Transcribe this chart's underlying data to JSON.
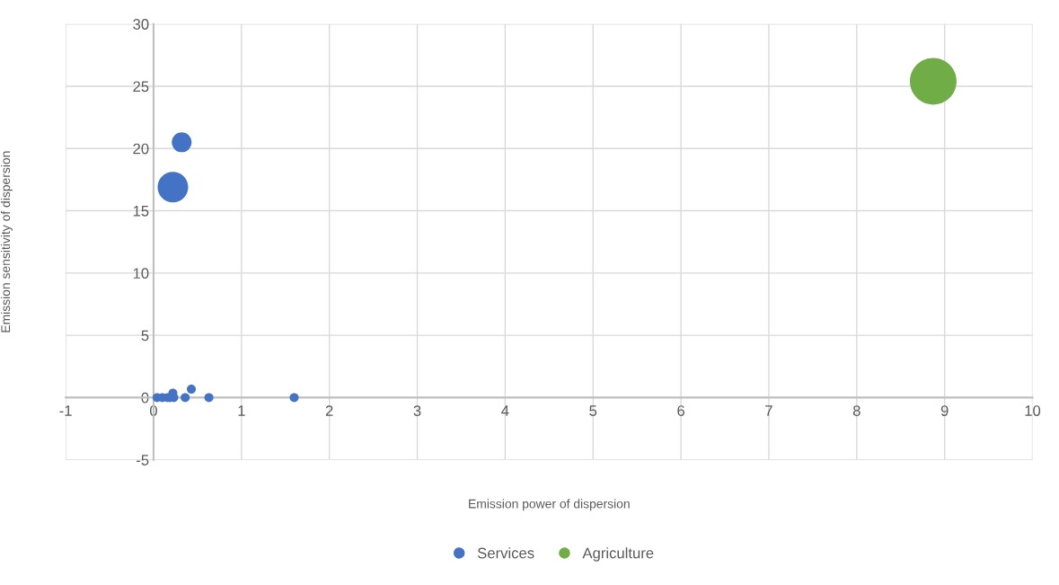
{
  "chart_data": {
    "type": "bubble",
    "xlabel": "Emission power of dispersion",
    "ylabel": "Emission sensitivity of dispersion",
    "xlim": [
      -1,
      10
    ],
    "xticks": [
      -1,
      0,
      1,
      2,
      3,
      4,
      5,
      6,
      7,
      8,
      9,
      10
    ],
    "ylim": [
      -5,
      30
    ],
    "yticks": [
      -5,
      0,
      5,
      10,
      15,
      20,
      25,
      30
    ],
    "grid": true,
    "legend": "bottom",
    "series": [
      {
        "name": "Services",
        "color": "#4472c4",
        "x": [
          0.04,
          0.1,
          0.16,
          0.19,
          0.23,
          0.22,
          0.36,
          0.43,
          0.63,
          1.6,
          0.22,
          0.32
        ],
        "values": [
          0,
          0,
          0,
          0,
          0,
          0.36,
          0,
          0.67,
          0,
          0,
          16.9,
          20.5
        ],
        "sizes": [
          0.037,
          0.037,
          0.037,
          0.037,
          0.037,
          0.037,
          0.037,
          0.037,
          0.037,
          0.037,
          0.43,
          0.18
        ]
      },
      {
        "name": "Agriculture",
        "color": "#70ad47",
        "x": [
          8.87
        ],
        "values": [
          25.4
        ],
        "sizes": [
          1
        ]
      }
    ]
  }
}
